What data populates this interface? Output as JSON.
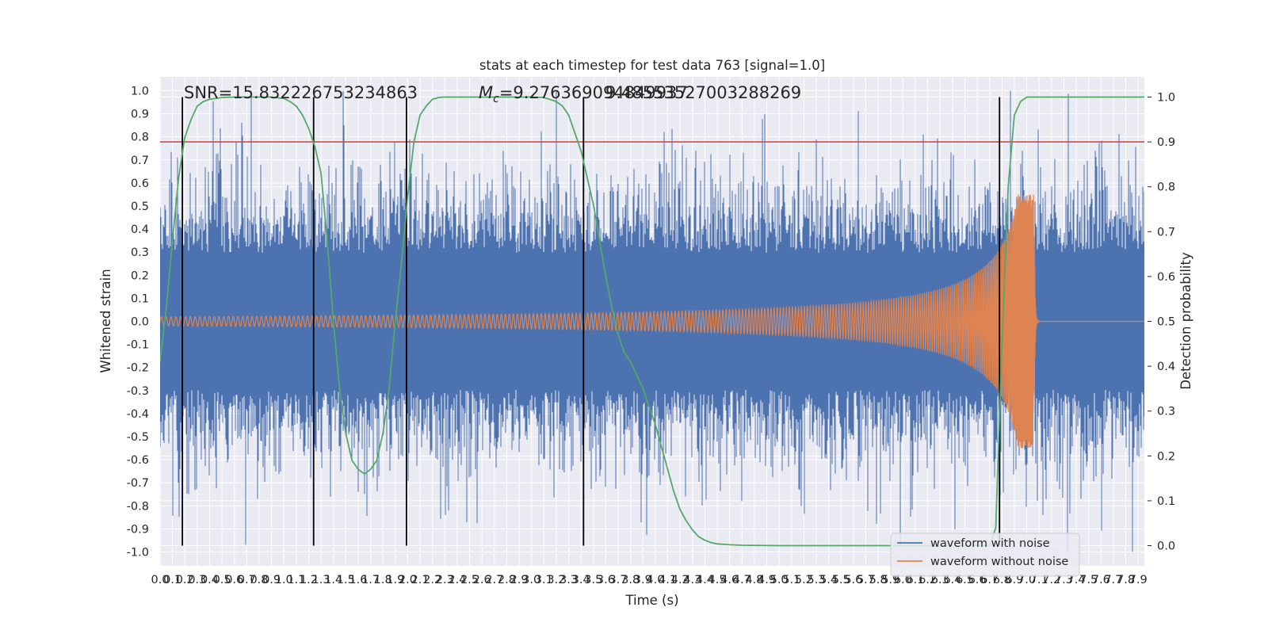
{
  "chart_data": {
    "type": "line",
    "title": "stats at each timestep for test data 763 [signal=1.0]",
    "xlabel": "Time (s)",
    "ylabel": "Whitened strain",
    "y2label": "Detection probability",
    "xlim": [
      0.0,
      7.95
    ],
    "ylim": [
      -1.06,
      1.06
    ],
    "y2lim": [
      -0.045,
      1.045
    ],
    "xticks_step": 0.1,
    "xtick_max": 7.9,
    "yticks": [
      -1.0,
      -0.9,
      -0.8,
      -0.7,
      -0.6,
      -0.5,
      -0.4,
      -0.3,
      -0.2,
      -0.1,
      0.0,
      0.1,
      0.2,
      0.3,
      0.4,
      0.5,
      0.6,
      0.7,
      0.8,
      0.9,
      1.0
    ],
    "y2ticks": [
      0.0,
      0.1,
      0.2,
      0.3,
      0.4,
      0.5,
      0.6,
      0.7,
      0.8,
      0.9,
      1.0
    ],
    "annotations": {
      "snr": "SNR=15.832226753234863",
      "mc_symbol": "M",
      "mc_sub": "c",
      "mc_value": "=9.276369094849937",
      "overlap_text": "9.48553527003288269"
    },
    "threshold": {
      "value": 0.9,
      "axis": "y2",
      "color": "#c44e52"
    },
    "event_lines": [
      0.18,
      1.24,
      1.99,
      3.42,
      6.78
    ],
    "series": [
      {
        "name": "waveform with noise",
        "color": "#4c72b0",
        "kind": "noise",
        "envelope_typical": 0.35,
        "envelope_peak": 1.0
      },
      {
        "name": "waveform without noise",
        "color": "#dd8452",
        "kind": "chirp",
        "t_merger": 7.06,
        "amplitude_start": 0.02,
        "amplitude_peak": 0.55
      },
      {
        "name": "detection probability",
        "color": "#55a868",
        "axis": "y2",
        "x": [
          0.0,
          0.05,
          0.1,
          0.15,
          0.2,
          0.25,
          0.3,
          0.35,
          0.4,
          0.5,
          0.6,
          0.7,
          0.8,
          0.9,
          1.0,
          1.05,
          1.1,
          1.15,
          1.2,
          1.25,
          1.3,
          1.35,
          1.4,
          1.45,
          1.5,
          1.55,
          1.6,
          1.65,
          1.7,
          1.75,
          1.8,
          1.85,
          1.9,
          1.95,
          2.0,
          2.05,
          2.1,
          2.15,
          2.2,
          2.25,
          2.3,
          2.4,
          2.6,
          2.8,
          3.0,
          3.1,
          3.2,
          3.25,
          3.3,
          3.35,
          3.4,
          3.45,
          3.5,
          3.55,
          3.6,
          3.65,
          3.7,
          3.75,
          3.8,
          3.85,
          3.9,
          3.95,
          4.0,
          4.05,
          4.1,
          4.15,
          4.2,
          4.25,
          4.3,
          4.35,
          4.4,
          4.45,
          4.5,
          4.6,
          4.7,
          5.0,
          5.5,
          6.0,
          6.5,
          6.7,
          6.75,
          6.8,
          6.85,
          6.9,
          6.95,
          7.0,
          7.1,
          7.3,
          7.6,
          7.95
        ],
        "values": [
          0.41,
          0.53,
          0.68,
          0.82,
          0.91,
          0.95,
          0.98,
          0.99,
          0.995,
          0.999,
          1.0,
          1.0,
          1.0,
          1.0,
          0.997,
          0.99,
          0.98,
          0.96,
          0.93,
          0.89,
          0.83,
          0.68,
          0.5,
          0.35,
          0.25,
          0.19,
          0.17,
          0.16,
          0.17,
          0.19,
          0.25,
          0.35,
          0.5,
          0.63,
          0.78,
          0.9,
          0.96,
          0.98,
          0.995,
          0.999,
          1.0,
          1.0,
          1.0,
          1.0,
          1.0,
          0.999,
          0.99,
          0.98,
          0.96,
          0.92,
          0.88,
          0.82,
          0.76,
          0.68,
          0.6,
          0.53,
          0.47,
          0.43,
          0.41,
          0.38,
          0.35,
          0.31,
          0.27,
          0.22,
          0.17,
          0.12,
          0.08,
          0.055,
          0.035,
          0.02,
          0.012,
          0.007,
          0.004,
          0.002,
          0.001,
          0.0,
          0.0,
          0.0,
          0.0,
          0.0,
          0.04,
          0.45,
          0.8,
          0.96,
          0.99,
          1.0,
          1.0,
          1.0,
          1.0,
          1.0
        ]
      }
    ],
    "legend": {
      "placement": "lower-right",
      "entries": [
        "waveform with noise",
        "waveform without noise"
      ]
    },
    "colors": {
      "plot_background": "#eaeaf2",
      "grid": "#ffffff",
      "event_line": "#000000"
    }
  }
}
